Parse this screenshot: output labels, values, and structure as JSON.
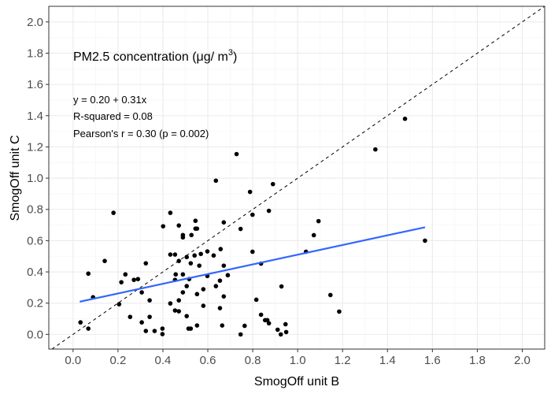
{
  "chart_data": {
    "type": "scatter",
    "title": "PM2.5 concentration (μg/ m³)",
    "title_main": "PM2.5 concentration (μg/ m",
    "title_sup": "3",
    "title_close": ")",
    "xlabel": "SmogOff unit B",
    "ylabel": "SmogOff unit C",
    "xlim": [
      -0.108,
      2.1
    ],
    "ylim": [
      -0.094,
      2.1
    ],
    "xticks": [
      "0.0",
      "0.2",
      "0.4",
      "0.6",
      "0.8",
      "1.0",
      "1.2",
      "1.4",
      "1.6",
      "1.8",
      "2.0"
    ],
    "yticks": [
      "0.0",
      "0.2",
      "0.4",
      "0.6",
      "0.8",
      "1.0",
      "1.2",
      "1.4",
      "1.6",
      "1.8",
      "2.0"
    ],
    "grid": true,
    "annotations": [
      "y = 0.20 + 0.31x",
      "R-squared = 0.08",
      "Pearson's r = 0.30 (p = 0.002)"
    ],
    "fit_line": {
      "intercept": 0.2,
      "slope": 0.31,
      "x_range": [
        0.03,
        1.567
      ],
      "color": "#3366FF"
    },
    "identity_line": {
      "slope": 1,
      "intercept": 0,
      "style": "dashed",
      "color": "#000000"
    },
    "point_color": "#000000",
    "points": [
      [
        0.636,
        0.984
      ],
      [
        0.18,
        0.778
      ],
      [
        0.433,
        0.778
      ],
      [
        0.545,
        0.727
      ],
      [
        0.671,
        0.717
      ],
      [
        0.401,
        0.692
      ],
      [
        0.471,
        0.697
      ],
      [
        0.552,
        0.677
      ],
      [
        0.545,
        0.677
      ],
      [
        0.489,
        0.636
      ],
      [
        0.489,
        0.621
      ],
      [
        0.527,
        0.636
      ],
      [
        0.141,
        0.47
      ],
      [
        0.433,
        0.511
      ],
      [
        0.454,
        0.511
      ],
      [
        0.471,
        0.47
      ],
      [
        0.506,
        0.495
      ],
      [
        0.541,
        0.505
      ],
      [
        0.569,
        0.515
      ],
      [
        0.598,
        0.531
      ],
      [
        0.626,
        0.505
      ],
      [
        0.657,
        0.546
      ],
      [
        0.324,
        0.455
      ],
      [
        0.524,
        0.455
      ],
      [
        0.562,
        0.44
      ],
      [
        0.671,
        0.44
      ],
      [
        0.068,
        0.389
      ],
      [
        0.233,
        0.384
      ],
      [
        0.457,
        0.384
      ],
      [
        0.489,
        0.384
      ],
      [
        0.598,
        0.374
      ],
      [
        0.689,
        0.379
      ],
      [
        0.215,
        0.334
      ],
      [
        0.271,
        0.349
      ],
      [
        0.289,
        0.354
      ],
      [
        0.454,
        0.349
      ],
      [
        0.517,
        0.354
      ],
      [
        0.654,
        0.344
      ],
      [
        0.506,
        0.309
      ],
      [
        0.636,
        0.309
      ],
      [
        0.306,
        0.269
      ],
      [
        0.489,
        0.269
      ],
      [
        0.58,
        0.289
      ],
      [
        0.552,
        0.258
      ],
      [
        0.671,
        0.243
      ],
      [
        0.089,
        0.238
      ],
      [
        0.341,
        0.218
      ],
      [
        0.471,
        0.218
      ],
      [
        0.205,
        0.193
      ],
      [
        0.433,
        0.198
      ],
      [
        0.58,
        0.183
      ],
      [
        0.454,
        0.153
      ],
      [
        0.471,
        0.148
      ],
      [
        0.654,
        0.168
      ],
      [
        0.254,
        0.112
      ],
      [
        0.341,
        0.112
      ],
      [
        0.506,
        0.117
      ],
      [
        0.033,
        0.077
      ],
      [
        0.306,
        0.077
      ],
      [
        0.552,
        0.057
      ],
      [
        0.664,
        0.057
      ],
      [
        0.068,
        0.037
      ],
      [
        0.324,
        0.022
      ],
      [
        0.363,
        0.022
      ],
      [
        0.398,
        0.037
      ],
      [
        0.398,
        0.002
      ],
      [
        0.514,
        0.037
      ],
      [
        0.524,
        0.037
      ],
      [
        0.728,
        1.154
      ],
      [
        1.346,
        1.184
      ],
      [
        0.89,
        0.962
      ],
      [
        0.788,
        0.912
      ],
      [
        0.872,
        0.791
      ],
      [
        0.799,
        0.766
      ],
      [
        0.746,
        0.675
      ],
      [
        1.093,
        0.725
      ],
      [
        1.072,
        0.635
      ],
      [
        1.567,
        0.6
      ],
      [
        0.799,
        0.529
      ],
      [
        1.037,
        0.529
      ],
      [
        0.837,
        0.453
      ],
      [
        0.928,
        0.307
      ],
      [
        1.146,
        0.252
      ],
      [
        0.816,
        0.222
      ],
      [
        1.185,
        0.146
      ],
      [
        0.837,
        0.126
      ],
      [
        0.855,
        0.091
      ],
      [
        0.865,
        0.091
      ],
      [
        0.872,
        0.071
      ],
      [
        0.946,
        0.065
      ],
      [
        0.911,
        0.03
      ],
      [
        0.949,
        0.015
      ],
      [
        0.925,
        0.0
      ],
      [
        0.764,
        0.055
      ],
      [
        0.746,
        0.0
      ],
      [
        1.478,
        1.38
      ]
    ]
  }
}
